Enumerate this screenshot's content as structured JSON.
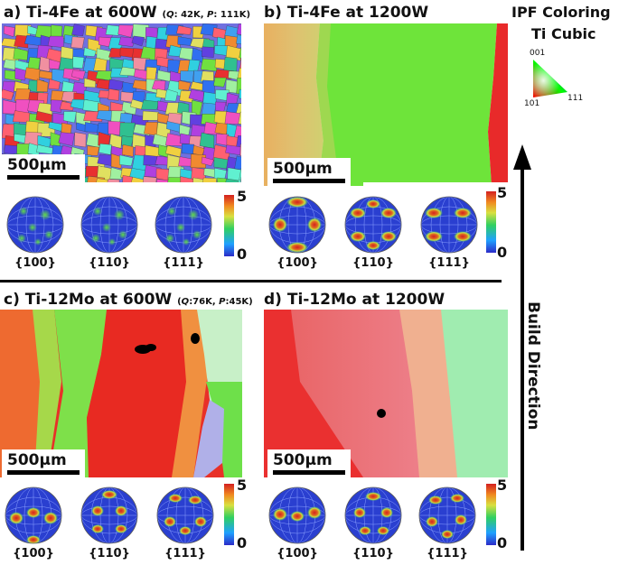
{
  "panels": {
    "a": {
      "title": "a) Ti-4Fe at 600W",
      "params_prefix": "(",
      "q_label": "Q",
      "q_value": ": 42K, ",
      "p_label": "P",
      "p_value": ": 111K)",
      "scale": "500µm"
    },
    "b": {
      "title": "b) Ti-4Fe at 1200W",
      "scale": "500µm"
    },
    "c": {
      "title": "c) Ti-12Mo at 600W",
      "params_prefix": "(",
      "q_label": "Q",
      "q_value": ":76K, ",
      "p_label": "P",
      "p_value": ":45K)",
      "scale": "500µm"
    },
    "d": {
      "title": "d) Ti-12Mo at 1200W",
      "scale": "500µm"
    }
  },
  "pole_figures": {
    "labels": [
      "{100}",
      "{110}",
      "{111}"
    ],
    "colorbar_max": "5",
    "colorbar_min": "0"
  },
  "legend": {
    "title_line1": "IPF Coloring",
    "title_line2": "Ti Cubic",
    "corner_001": "001",
    "corner_101": "101",
    "corner_111": "111"
  },
  "build_direction": "Build Direction",
  "colors": {
    "red": "#e82020",
    "green": "#60e030",
    "blue": "#3050e0",
    "pink": "#f090a0"
  }
}
